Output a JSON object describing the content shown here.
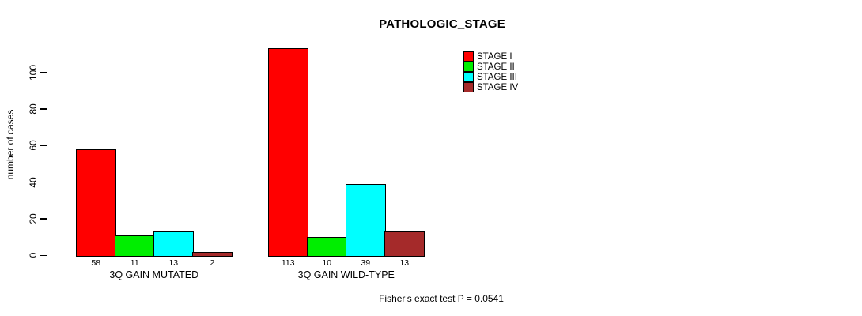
{
  "chart_data": {
    "type": "bar",
    "title": "PATHOLOGIC_STAGE",
    "ylabel": "number of cases",
    "xlabel": "",
    "ylim": [
      0,
      100
    ],
    "yticks": [
      0,
      20,
      40,
      60,
      80,
      100
    ],
    "categories": [
      "3Q GAIN MUTATED",
      "3Q GAIN WILD-TYPE"
    ],
    "series": [
      {
        "name": "STAGE I",
        "color": "#ff0000",
        "values": [
          58,
          113
        ]
      },
      {
        "name": "STAGE II",
        "color": "#00ee00",
        "values": [
          11,
          10
        ]
      },
      {
        "name": "STAGE III",
        "color": "#00ffff",
        "values": [
          13,
          39
        ]
      },
      {
        "name": "STAGE IV",
        "color": "#a52a2a",
        "values": [
          2,
          13
        ]
      }
    ],
    "bar_labels": [
      [
        "58",
        "11",
        "13",
        "2"
      ],
      [
        "113",
        "10",
        "39",
        "13"
      ]
    ],
    "legend_position": "top-right",
    "grid": false,
    "annotation": "Fisher's exact test P = 0.0541"
  }
}
